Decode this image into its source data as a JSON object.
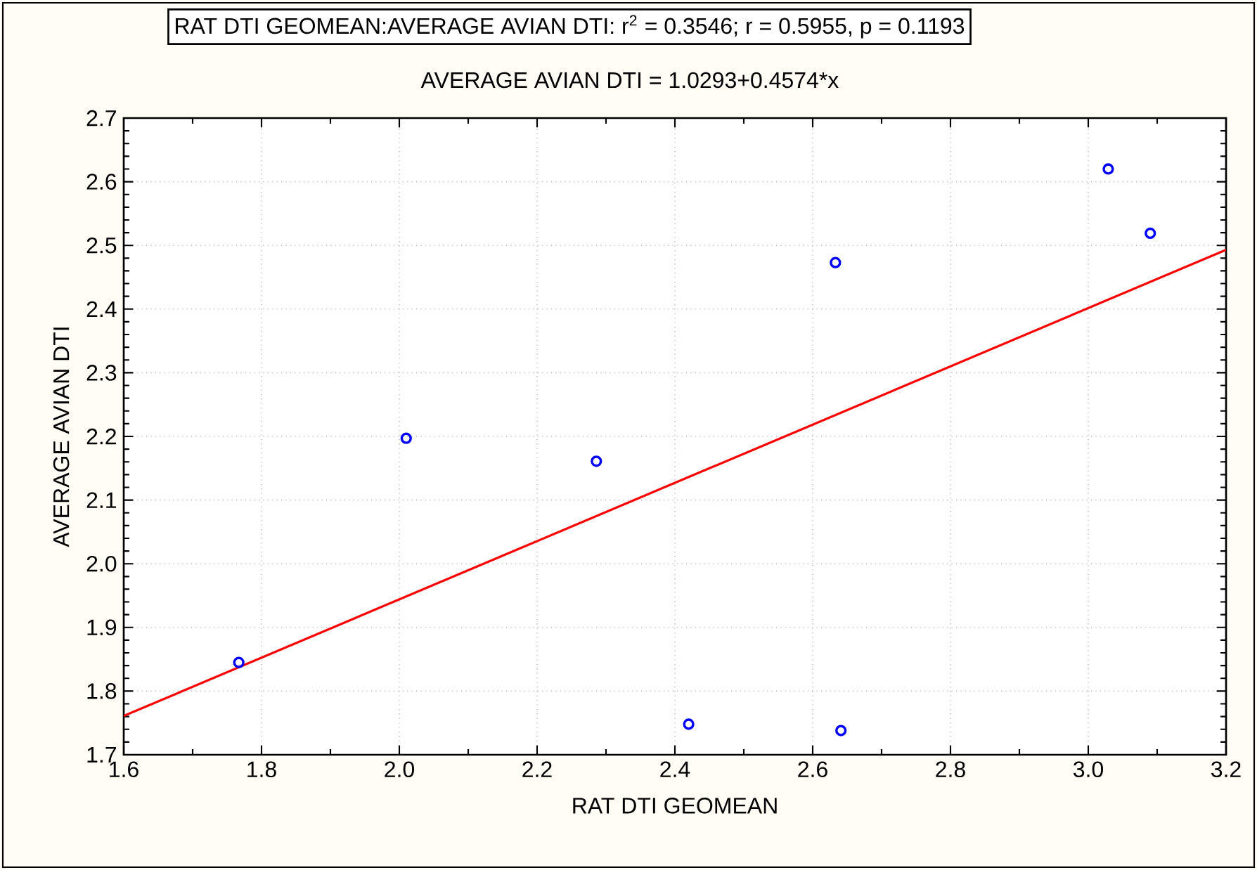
{
  "chart_data": {
    "type": "scatter",
    "title": "RAT DTI GEOMEAN:AVERAGE AVIAN DTI:  r$^{2}$ = 0.3546;  r = 0.5955, p = 0.1193",
    "subtitle": "AVERAGE AVIAN DTI = 1.0293+0.4574*x",
    "xlabel": "RAT DTI GEOMEAN",
    "ylabel": "AVERAGE AVIAN DTI",
    "xlim": [
      1.6,
      3.2
    ],
    "ylim": [
      1.7,
      2.7
    ],
    "xticks": [
      1.6,
      1.8,
      {
        "value": 2,
        "label": "2.0"
      },
      2.2,
      2.4,
      2.6,
      2.8,
      {
        "value": 3,
        "label": "3.0"
      },
      3.2
    ],
    "yticks": [
      1.7,
      1.8,
      1.9,
      {
        "value": 2,
        "label": "2.0"
      },
      2.1,
      2.2,
      2.3,
      2.4,
      2.5,
      2.6,
      2.7
    ],
    "grid": true,
    "series": [
      {
        "color": "#0000ff",
        "marker": "circle",
        "x": [
          1.767,
          2.01,
          2.286,
          2.42,
          2.633,
          2.641,
          3.029,
          3.09
        ],
        "values": [
          1.845,
          2.197,
          2.161,
          1.748,
          2.473,
          1.738,
          2.62,
          2.519
        ]
      },
      {
        "type": "line",
        "color": "#ff0000",
        "line_style": "solid",
        "x": [
          1.6,
          3.2
        ],
        "values": [
          1.761,
          2.493
        ]
      }
    ]
  }
}
